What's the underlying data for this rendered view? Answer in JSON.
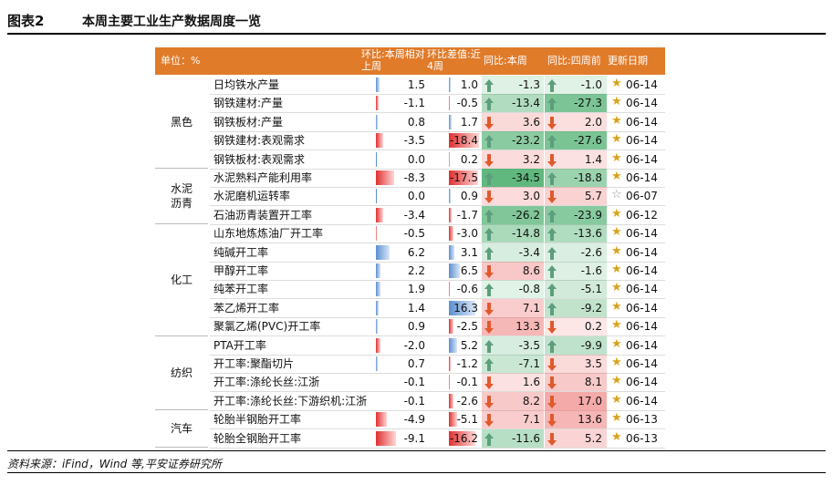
{
  "title": {
    "prefix": "图表2",
    "text": "本周主要工业生产数据周度一览"
  },
  "header": {
    "unit": "单位：%",
    "col_wow": "环比:本周相对上周",
    "col_wow4": "环比差值:近4周",
    "col_yoy": "同比:本周",
    "col_yoy4": "同比:四周前",
    "col_date": "更新日期"
  },
  "colors": {
    "header": "#e07b2a",
    "up_arrow": "#5c9e7d",
    "down_arrow": "#e05a2c",
    "star": "#d9a21b",
    "pos_bar": "#5b8fd0",
    "neg_bar": "#e03030",
    "green_cell": "#6cc58a",
    "red_cell": "#f07a7a"
  },
  "categories": [
    {
      "label": "黑色",
      "rows": 5
    },
    {
      "label": "水泥沥青",
      "rows": 3
    },
    {
      "label": "化工",
      "rows": 6
    },
    {
      "label": "纺织",
      "rows": 4
    },
    {
      "label": "汽车",
      "rows": 2
    }
  ],
  "rows": [
    {
      "name": "日均铁水产量",
      "wow": "1.5",
      "wow4": "1.0",
      "yoy": "-1.3",
      "yoy4": "-1.0",
      "date": "06-14",
      "star": "filled"
    },
    {
      "name": "钢铁建材:产量",
      "wow": "-1.1",
      "wow4": "-0.5",
      "yoy": "-13.4",
      "yoy4": "-27.3",
      "date": "06-14",
      "star": "filled"
    },
    {
      "name": "钢铁板材:产量",
      "wow": "0.8",
      "wow4": "1.7",
      "yoy": "3.6",
      "yoy4": "2.0",
      "date": "06-14",
      "star": "filled"
    },
    {
      "name": "钢铁建材:表观需求",
      "wow": "-3.5",
      "wow4": "-18.4",
      "yoy": "-23.2",
      "yoy4": "-27.6",
      "date": "06-14",
      "star": "filled"
    },
    {
      "name": "钢铁板材:表观需求",
      "wow": "0.0",
      "wow4": "0.2",
      "yoy": "3.2",
      "yoy4": "1.4",
      "date": "06-14",
      "star": "filled"
    },
    {
      "name": "水泥熟料产能利用率",
      "wow": "-8.3",
      "wow4": "-17.5",
      "yoy": "-34.5",
      "yoy4": "-18.8",
      "date": "06-14",
      "star": "filled"
    },
    {
      "name": "水泥磨机运转率",
      "wow": "0.0",
      "wow4": "0.9",
      "yoy": "3.0",
      "yoy4": "5.7",
      "date": "06-07",
      "star": "empty"
    },
    {
      "name": "石油沥青装置开工率",
      "wow": "-3.4",
      "wow4": "-1.7",
      "yoy": "-26.2",
      "yoy4": "-23.9",
      "date": "06-12",
      "star": "filled"
    },
    {
      "name": "山东地炼炼油厂开工率",
      "wow": "-0.5",
      "wow4": "-3.0",
      "yoy": "-14.8",
      "yoy4": "-13.6",
      "date": "06-14",
      "star": "filled"
    },
    {
      "name": "纯碱开工率",
      "wow": "6.2",
      "wow4": "3.1",
      "yoy": "-3.4",
      "yoy4": "-2.6",
      "date": "06-14",
      "star": "filled"
    },
    {
      "name": "甲醇开工率",
      "wow": "2.2",
      "wow4": "6.5",
      "yoy": "8.6",
      "yoy4": "-1.6",
      "date": "06-14",
      "star": "filled"
    },
    {
      "name": "纯苯开工率",
      "wow": "1.9",
      "wow4": "-0.6",
      "yoy": "-0.8",
      "yoy4": "-5.1",
      "date": "06-14",
      "star": "filled"
    },
    {
      "name": "苯乙烯开工率",
      "wow": "1.4",
      "wow4": "16.3",
      "yoy": "7.1",
      "yoy4": "-9.2",
      "date": "06-14",
      "star": "filled"
    },
    {
      "name": "聚氯乙烯(PVC)开工率",
      "wow": "0.9",
      "wow4": "-2.5",
      "yoy": "13.3",
      "yoy4": "0.2",
      "date": "06-14",
      "star": "filled"
    },
    {
      "name": "PTA开工率",
      "wow": "-2.0",
      "wow4": "5.2",
      "yoy": "-3.5",
      "yoy4": "-9.9",
      "date": "06-14",
      "star": "filled"
    },
    {
      "name": "开工率:聚酯切片",
      "wow": "0.7",
      "wow4": "-1.2",
      "yoy": "-7.1",
      "yoy4": "3.5",
      "date": "06-14",
      "star": "filled"
    },
    {
      "name": "开工率:涤纶长丝:江浙",
      "wow": "-0.1",
      "wow4": "-0.1",
      "yoy": "1.6",
      "yoy4": "8.1",
      "date": "06-14",
      "star": "filled"
    },
    {
      "name": "开工率:涤纶长丝:下游织机:江浙",
      "wow": "-0.1",
      "wow4": "-2.6",
      "yoy": "8.2",
      "yoy4": "17.0",
      "date": "06-14",
      "star": "filled"
    },
    {
      "name": "轮胎半钢胎开工率",
      "wow": "-4.9",
      "wow4": "-5.1",
      "yoy": "7.1",
      "yoy4": "13.6",
      "date": "06-13",
      "star": "filled"
    },
    {
      "name": "轮胎全钢胎开工率",
      "wow": "-9.1",
      "wow4": "-16.2",
      "yoy": "-11.6",
      "yoy4": "5.2",
      "date": "06-13",
      "star": "filled"
    }
  ],
  "source": "资料来源：iFind，Wind 等,平安证券研究所"
}
